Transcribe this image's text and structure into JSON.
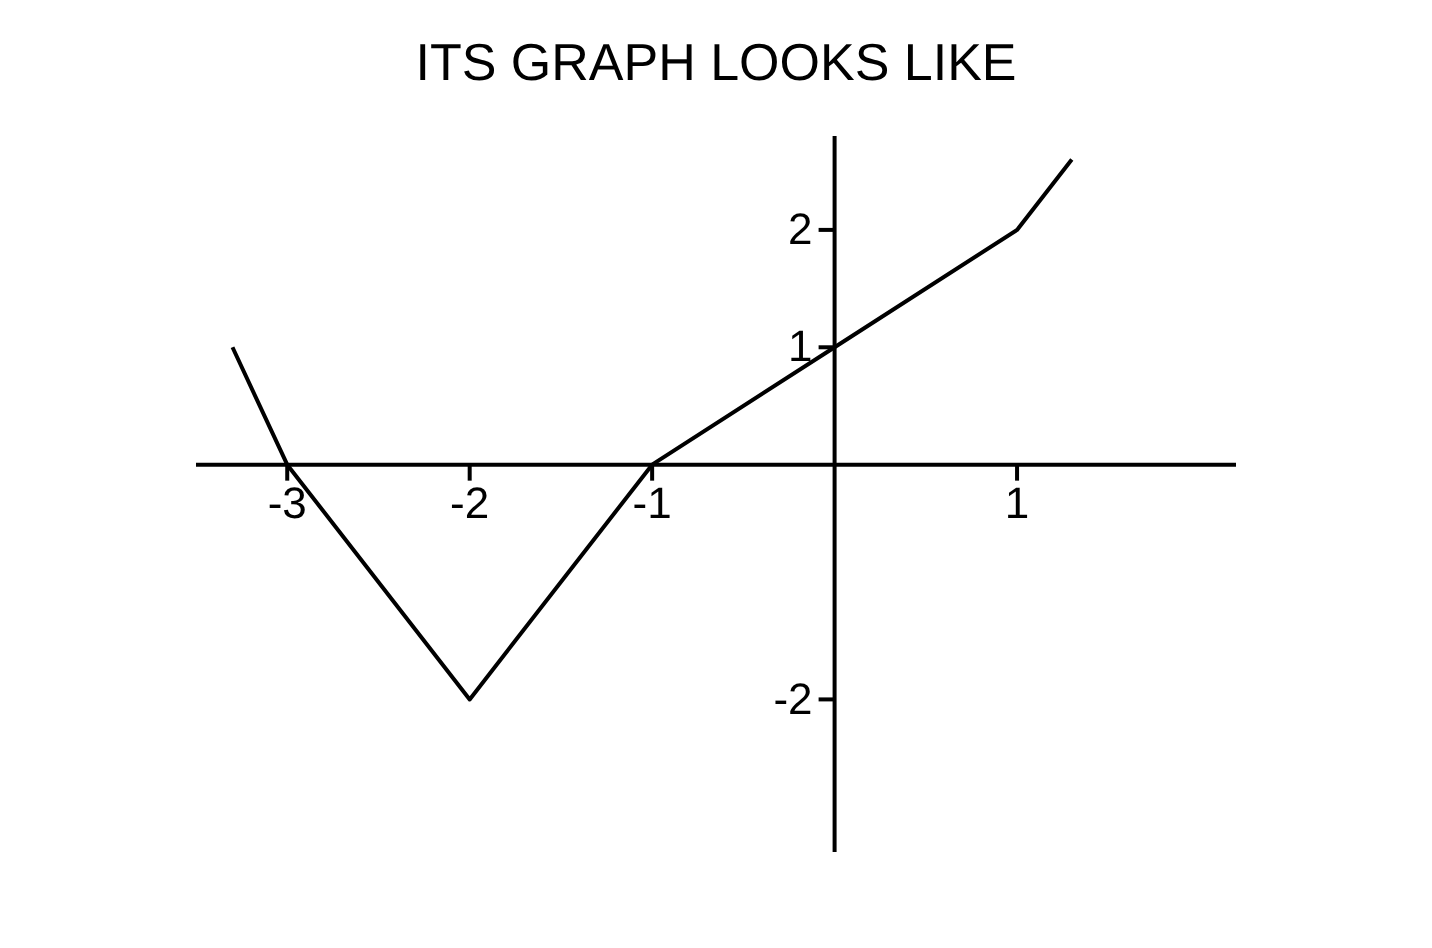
{
  "chart_data": {
    "type": "line",
    "title": "ITS GRAPH LOOKS LIKE",
    "x": [
      -3.3,
      -3,
      -2,
      -1,
      0,
      1,
      1.3
    ],
    "series": [
      {
        "color": "#000000",
        "values": [
          1,
          0,
          -2,
          0,
          1,
          2,
          2.6
        ]
      }
    ],
    "xlim": [
      -3.5,
      2.2
    ],
    "ylim": [
      -3.3,
      2.8
    ],
    "xticks": [
      -3,
      -2,
      -1,
      1
    ],
    "yticks": [
      -2,
      1,
      2
    ],
    "marker": "none",
    "line_style": "solid"
  }
}
